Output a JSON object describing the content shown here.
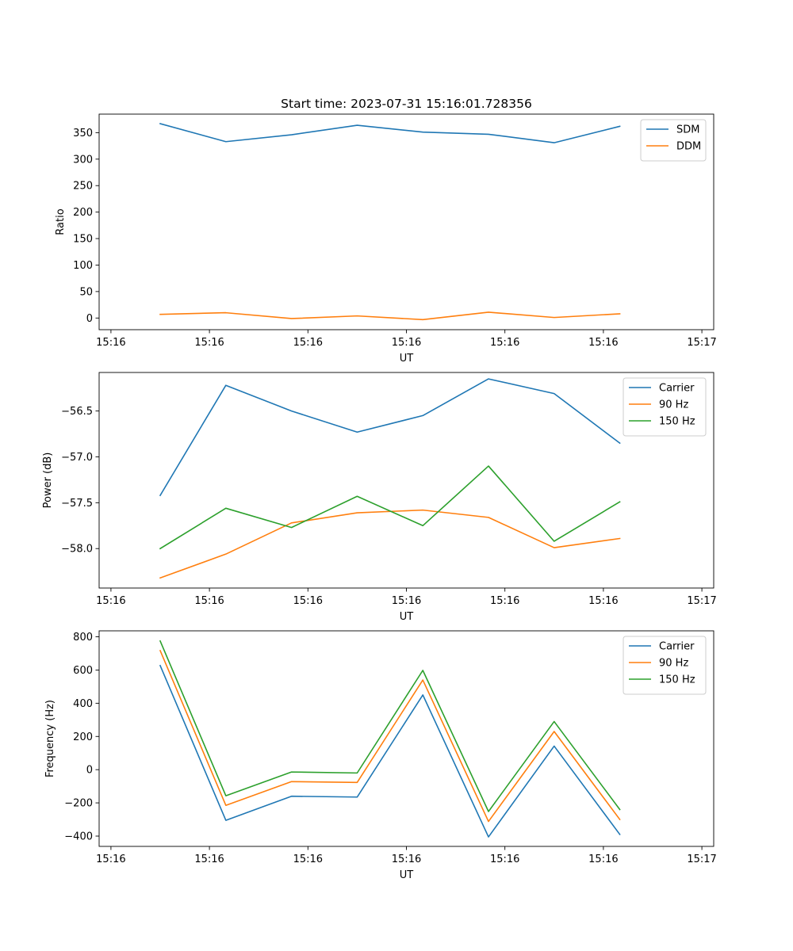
{
  "figure_title": "Start time: 2023-07-31 15:16:01.728356",
  "colors": {
    "blue": "#1f77b4",
    "orange": "#ff7f0e",
    "green": "#2ca02c"
  },
  "chart_data": [
    {
      "type": "line",
      "title": "Start time: 2023-07-31 15:16:01.728356",
      "xlabel": "UT",
      "ylabel": "Ratio",
      "xlim": [
        -0.18,
        9.18
      ],
      "ylim": [
        -22,
        385
      ],
      "x_ticks": [
        0,
        1.5,
        3,
        4.5,
        6,
        7.5,
        9
      ],
      "x_tick_labels": [
        "15:16",
        "15:16",
        "15:16",
        "15:16",
        "15:16",
        "15:16",
        "15:17"
      ],
      "y_ticks": [
        0,
        50,
        100,
        150,
        200,
        250,
        300,
        350
      ],
      "y_tick_labels": [
        "0",
        "50",
        "100",
        "150",
        "200",
        "250",
        "300",
        "350"
      ],
      "legend_position": "top-right",
      "x": [
        0.75,
        1.75,
        2.75,
        3.75,
        4.75,
        5.75,
        6.75,
        7.75
      ],
      "series": [
        {
          "name": "SDM",
          "color": "#1f77b4",
          "values": [
            367,
            333,
            346,
            364,
            351,
            347,
            331,
            362
          ]
        },
        {
          "name": "DDM",
          "color": "#ff7f0e",
          "values": [
            7,
            10,
            -1,
            4,
            -3,
            11,
            1,
            8
          ]
        }
      ]
    },
    {
      "type": "line",
      "xlabel": "UT",
      "ylabel": "Power (dB)",
      "xlim": [
        -0.18,
        9.18
      ],
      "ylim": [
        -58.43,
        -56.08
      ],
      "x_ticks": [
        0,
        1.5,
        3,
        4.5,
        6,
        7.5,
        9
      ],
      "x_tick_labels": [
        "15:16",
        "15:16",
        "15:16",
        "15:16",
        "15:16",
        "15:16",
        "15:17"
      ],
      "y_ticks": [
        -58.0,
        -57.5,
        -57.0,
        -56.5
      ],
      "y_tick_labels": [
        "−58.0",
        "−57.5",
        "−57.0",
        "−56.5"
      ],
      "legend_position": "top-right",
      "x": [
        0.75,
        1.75,
        2.75,
        3.75,
        4.75,
        5.75,
        6.75,
        7.75
      ],
      "series": [
        {
          "name": "Carrier",
          "color": "#1f77b4",
          "values": [
            -57.42,
            -56.22,
            -56.5,
            -56.73,
            -56.55,
            -56.15,
            -56.31,
            -56.85
          ]
        },
        {
          "name": "90 Hz",
          "color": "#ff7f0e",
          "values": [
            -58.32,
            -58.06,
            -57.72,
            -57.61,
            -57.58,
            -57.66,
            -57.99,
            -57.89
          ]
        },
        {
          "name": "150 Hz",
          "color": "#2ca02c",
          "values": [
            -58.0,
            -57.56,
            -57.77,
            -57.43,
            -57.75,
            -57.1,
            -57.92,
            -57.49
          ]
        }
      ]
    },
    {
      "type": "line",
      "xlabel": "UT",
      "ylabel": "Frequency (Hz)",
      "xlim": [
        -0.18,
        9.18
      ],
      "ylim": [
        -462,
        836
      ],
      "x_ticks": [
        0,
        1.5,
        3,
        4.5,
        6,
        7.5,
        9
      ],
      "x_tick_labels": [
        "15:16",
        "15:16",
        "15:16",
        "15:16",
        "15:16",
        "15:16",
        "15:17"
      ],
      "y_ticks": [
        -400,
        -200,
        0,
        200,
        400,
        600,
        800
      ],
      "y_tick_labels": [
        "−400",
        "−200",
        "0",
        "200",
        "400",
        "600",
        "800"
      ],
      "legend_position": "top-right",
      "x": [
        0.75,
        1.75,
        2.75,
        3.75,
        4.75,
        5.75,
        6.75,
        7.75
      ],
      "series": [
        {
          "name": "Carrier",
          "color": "#1f77b4",
          "values": [
            627,
            -305,
            -160,
            -165,
            450,
            -405,
            142,
            -390
          ]
        },
        {
          "name": "90 Hz",
          "color": "#ff7f0e",
          "values": [
            717,
            -215,
            -72,
            -77,
            540,
            -312,
            230,
            -300
          ]
        },
        {
          "name": "150 Hz",
          "color": "#2ca02c",
          "values": [
            775,
            -157,
            -14,
            -20,
            598,
            -252,
            290,
            -240
          ]
        }
      ]
    }
  ]
}
